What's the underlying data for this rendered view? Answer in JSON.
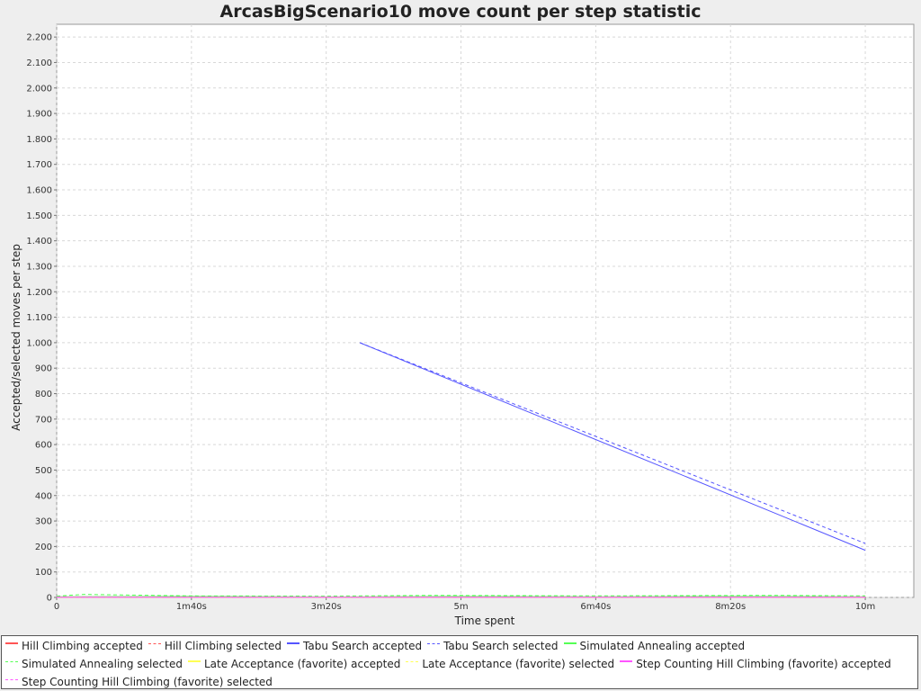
{
  "chart_data": {
    "type": "line",
    "title": "ArcasBigScenario10 move count per step statistic",
    "xlabel": "Time spent",
    "ylabel": "Accepted/selected moves per step",
    "x_unit": "seconds",
    "xlim": [
      0,
      636
    ],
    "ylim": [
      0,
      2250
    ],
    "x_ticks": [
      {
        "value": 0,
        "label": "0"
      },
      {
        "value": 100,
        "label": "1m40s"
      },
      {
        "value": 200,
        "label": "3m20s"
      },
      {
        "value": 300,
        "label": "5m"
      },
      {
        "value": 400,
        "label": "6m40s"
      },
      {
        "value": 500,
        "label": "8m20s"
      },
      {
        "value": 600,
        "label": "10m"
      }
    ],
    "y_ticks": [
      {
        "value": 0,
        "label": "0"
      },
      {
        "value": 100,
        "label": "100"
      },
      {
        "value": 200,
        "label": "200"
      },
      {
        "value": 300,
        "label": "300"
      },
      {
        "value": 400,
        "label": "400"
      },
      {
        "value": 500,
        "label": "500"
      },
      {
        "value": 600,
        "label": "600"
      },
      {
        "value": 700,
        "label": "700"
      },
      {
        "value": 800,
        "label": "800"
      },
      {
        "value": 900,
        "label": "900"
      },
      {
        "value": 1000,
        "label": "1.000"
      },
      {
        "value": 1100,
        "label": "1.100"
      },
      {
        "value": 1200,
        "label": "1.200"
      },
      {
        "value": 1300,
        "label": "1.300"
      },
      {
        "value": 1400,
        "label": "1.400"
      },
      {
        "value": 1500,
        "label": "1.500"
      },
      {
        "value": 1600,
        "label": "1.600"
      },
      {
        "value": 1700,
        "label": "1.700"
      },
      {
        "value": 1800,
        "label": "1.800"
      },
      {
        "value": 1900,
        "label": "1.900"
      },
      {
        "value": 2000,
        "label": "2.000"
      },
      {
        "value": 2100,
        "label": "2.100"
      },
      {
        "value": 2200,
        "label": "2.200"
      }
    ],
    "grid": true,
    "legend_position": "bottom",
    "series": [
      {
        "name": "Hill Climbing accepted",
        "color": "#ff5555",
        "dash": "solid",
        "x": [
          0,
          600
        ],
        "y": [
          1,
          1
        ]
      },
      {
        "name": "Hill Climbing selected",
        "color": "#ff5555",
        "dash": "dashed",
        "x": [
          0,
          600
        ],
        "y": [
          2,
          2
        ]
      },
      {
        "name": "Tabu Search accepted",
        "color": "#5555ff",
        "dash": "solid",
        "x": [
          225,
          600
        ],
        "y": [
          1000,
          185
        ]
      },
      {
        "name": "Tabu Search selected",
        "color": "#5555ff",
        "dash": "dashed",
        "x": [
          225,
          600
        ],
        "y": [
          1000,
          212
        ]
      },
      {
        "name": "Simulated Annealing accepted",
        "color": "#55ff55",
        "dash": "solid",
        "x": [
          0,
          100,
          200,
          300,
          400,
          500,
          600
        ],
        "y": [
          3,
          4,
          2,
          4,
          3,
          4,
          3
        ]
      },
      {
        "name": "Simulated Annealing selected",
        "color": "#55ff55",
        "dash": "dashed",
        "x": [
          0,
          20,
          100,
          200,
          280,
          400,
          530,
          600
        ],
        "y": [
          5,
          12,
          6,
          5,
          8,
          6,
          8,
          6
        ]
      },
      {
        "name": "Late Acceptance (favorite) accepted",
        "color": "#ffff55",
        "dash": "solid",
        "x": [
          0,
          600
        ],
        "y": [
          1,
          1
        ]
      },
      {
        "name": "Late Acceptance (favorite) selected",
        "color": "#ffff55",
        "dash": "dashed",
        "x": [
          0,
          600
        ],
        "y": [
          1,
          1
        ]
      },
      {
        "name": "Step Counting Hill Climbing (favorite) accepted",
        "color": "#ff55ff",
        "dash": "solid",
        "x": [
          0,
          600
        ],
        "y": [
          1,
          1
        ]
      },
      {
        "name": "Step Counting Hill Climbing (favorite) selected",
        "color": "#ff55ff",
        "dash": "dashed",
        "x": [
          0,
          600
        ],
        "y": [
          1,
          1
        ]
      }
    ]
  }
}
